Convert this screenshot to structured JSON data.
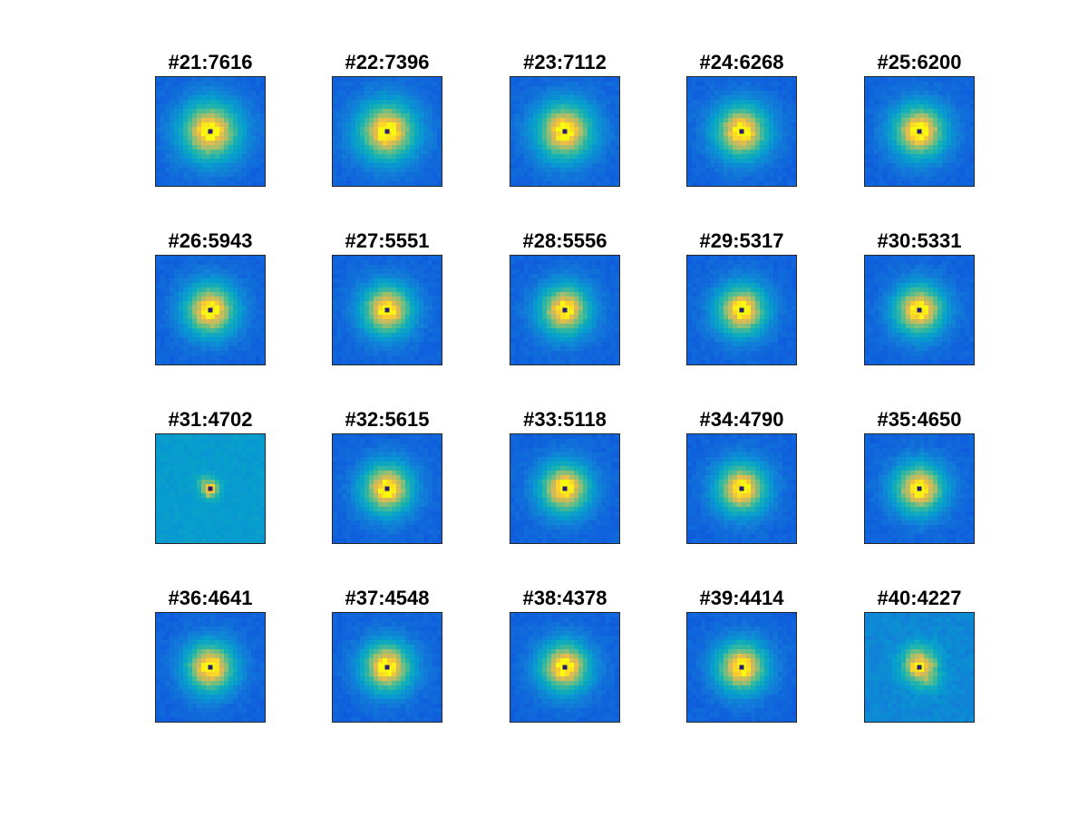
{
  "chart_data": {
    "type": "heatmap",
    "layout": "4 rows x 5 columns",
    "colormap": "parula",
    "grid": false,
    "axes_ticks": false,
    "center_marker": "dark square at center of each panel",
    "panels": [
      {
        "title": "#21:7616",
        "id": 21,
        "value": 7616,
        "style": "smooth"
      },
      {
        "title": "#22:7396",
        "id": 22,
        "value": 7396,
        "style": "smooth"
      },
      {
        "title": "#23:7112",
        "id": 23,
        "value": 7112,
        "style": "smooth"
      },
      {
        "title": "#24:6268",
        "id": 24,
        "value": 6268,
        "style": "smooth"
      },
      {
        "title": "#25:6200",
        "id": 25,
        "value": 6200,
        "style": "smooth"
      },
      {
        "title": "#26:5943",
        "id": 26,
        "value": 5943,
        "style": "smooth"
      },
      {
        "title": "#27:5551",
        "id": 27,
        "value": 5551,
        "style": "smooth"
      },
      {
        "title": "#28:5556",
        "id": 28,
        "value": 5556,
        "style": "smooth"
      },
      {
        "title": "#29:5317",
        "id": 29,
        "value": 5317,
        "style": "smooth"
      },
      {
        "title": "#30:5331",
        "id": 30,
        "value": 5331,
        "style": "smooth"
      },
      {
        "title": "#31:4702",
        "id": 31,
        "value": 4702,
        "style": "noisy"
      },
      {
        "title": "#32:5615",
        "id": 32,
        "value": 5615,
        "style": "smooth"
      },
      {
        "title": "#33:5118",
        "id": 33,
        "value": 5118,
        "style": "smooth"
      },
      {
        "title": "#34:4790",
        "id": 34,
        "value": 4790,
        "style": "smooth"
      },
      {
        "title": "#35:4650",
        "id": 35,
        "value": 4650,
        "style": "smooth"
      },
      {
        "title": "#36:4641",
        "id": 36,
        "value": 4641,
        "style": "smooth"
      },
      {
        "title": "#37:4548",
        "id": 37,
        "value": 4548,
        "style": "smooth"
      },
      {
        "title": "#38:4378",
        "id": 38,
        "value": 4378,
        "style": "smooth"
      },
      {
        "title": "#39:4414",
        "id": 39,
        "value": 4414,
        "style": "smooth"
      },
      {
        "title": "#40:4227",
        "id": 40,
        "value": 4227,
        "style": "blotchy"
      }
    ]
  }
}
